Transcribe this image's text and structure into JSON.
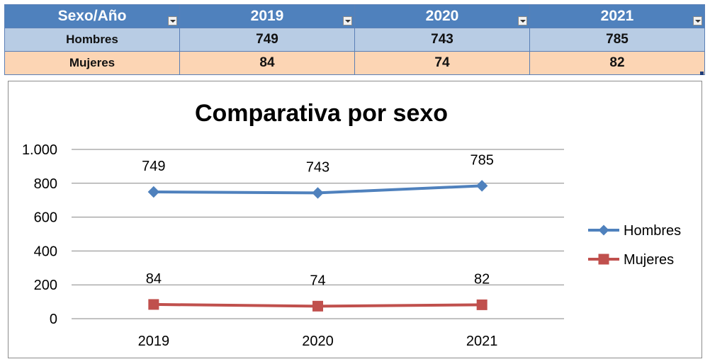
{
  "table": {
    "header": "Sexo/Año",
    "years": [
      "2019",
      "2020",
      "2021"
    ],
    "rows": [
      {
        "label": "Hombres",
        "values": [
          "749",
          "743",
          "785"
        ],
        "color": "#b8cce4"
      },
      {
        "label": "Mujeres",
        "values": [
          "84",
          "74",
          "82"
        ],
        "color": "#fcd5b4"
      }
    ],
    "header_color": "#4f81bd"
  },
  "chart_data": {
    "type": "line",
    "title": "Comparativa por sexo",
    "categories": [
      "2019",
      "2020",
      "2021"
    ],
    "ylim": [
      0,
      1000
    ],
    "yticks": [
      0,
      200,
      400,
      600,
      800,
      1000
    ],
    "ytick_labels": [
      "0",
      "200",
      "400",
      "600",
      "800",
      "1.000"
    ],
    "grid": true,
    "legend_position": "right",
    "series": [
      {
        "name": "Hombres",
        "values": [
          749,
          743,
          785
        ],
        "color": "#4f81bd",
        "marker": "diamond"
      },
      {
        "name": "Mujeres",
        "values": [
          84,
          74,
          82
        ],
        "color": "#c0504d",
        "marker": "square"
      }
    ]
  }
}
